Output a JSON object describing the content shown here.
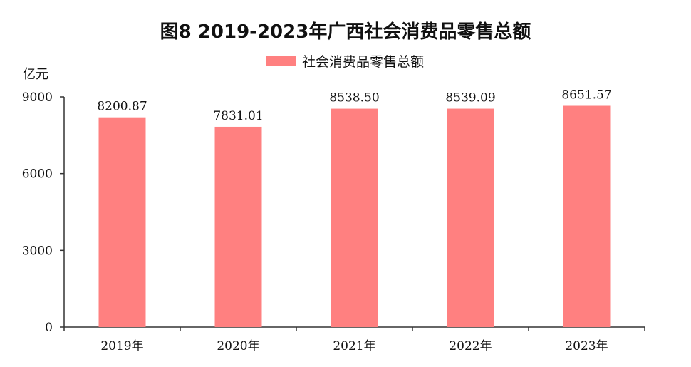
{
  "chart_data": {
    "type": "bar",
    "title": "图8   2019-2023年广西社会消费品零售总额",
    "ylabel": "亿元",
    "xlabel": "",
    "categories": [
      "2019年",
      "2020年",
      "2021年",
      "2022年",
      "2023年"
    ],
    "series": [
      {
        "name": "社会消费品零售总额",
        "values": [
          8200.87,
          7831.01,
          8538.5,
          8539.09,
          8651.57
        ],
        "value_labels": [
          "8200.87",
          "7831.01",
          "8538.50",
          "8539.09",
          "8651.57"
        ],
        "color": "#ff8080"
      }
    ],
    "ylim": [
      0,
      9000
    ],
    "yticks": [
      0,
      3000,
      6000,
      9000
    ],
    "ytick_labels": [
      "0",
      "3000",
      "6000",
      "9000"
    ],
    "grid": false,
    "legend_position": "top-center"
  }
}
